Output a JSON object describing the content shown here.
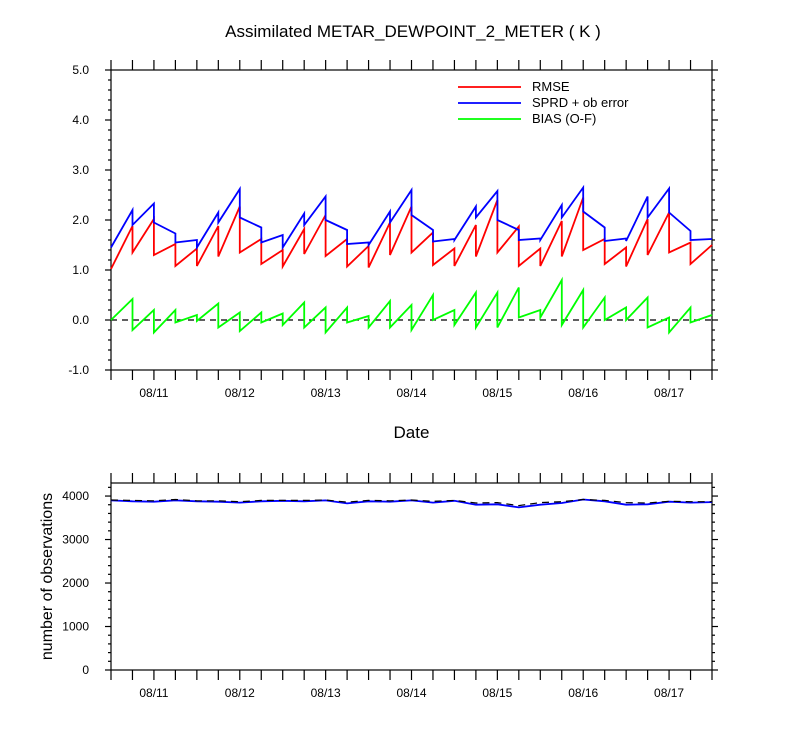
{
  "title": "Assimilated METAR_DEWPOINT_2_METER ( K )",
  "chart_data": [
    {
      "type": "line",
      "title": "Assimilated METAR_DEWPOINT_2_METER ( K )",
      "xlabel": "Date",
      "ylabel": "",
      "xlim": [
        0,
        14
      ],
      "ylim": [
        -1.0,
        5.0
      ],
      "yticks": [
        -1.0,
        0.0,
        1.0,
        2.0,
        3.0,
        4.0,
        5.0
      ],
      "ytick_labels": [
        "-1.0",
        "0.0",
        "1.0",
        "2.0",
        "3.0",
        "4.0",
        "5.0"
      ],
      "xtick_labels": [
        {
          "x": 1,
          "label": "08/11"
        },
        {
          "x": 3,
          "label": "08/12"
        },
        {
          "x": 5,
          "label": "08/13"
        },
        {
          "x": 7,
          "label": "08/14"
        },
        {
          "x": 9,
          "label": "08/15"
        },
        {
          "x": 11,
          "label": "08/16"
        },
        {
          "x": 13,
          "label": "08/17"
        }
      ],
      "legend_position": "top-right",
      "zero_line": "dashed",
      "series": [
        {
          "name": "RMSE",
          "color": "#ff0000",
          "points": [
            [
              0,
              1.02
            ],
            [
              0.5,
              1.88
            ],
            [
              0.5,
              1.35
            ],
            [
              1,
              2.02
            ],
            [
              1,
              1.3
            ],
            [
              1.5,
              1.52
            ],
            [
              1.5,
              1.08
            ],
            [
              2,
              1.43
            ],
            [
              2,
              1.08
            ],
            [
              2.5,
              1.88
            ],
            [
              2.5,
              1.27
            ],
            [
              3,
              2.27
            ],
            [
              3,
              1.35
            ],
            [
              3.5,
              1.62
            ],
            [
              3.5,
              1.12
            ],
            [
              4,
              1.4
            ],
            [
              4,
              1.07
            ],
            [
              4.5,
              1.82
            ],
            [
              4.5,
              1.32
            ],
            [
              5,
              2.1
            ],
            [
              5,
              1.28
            ],
            [
              5.5,
              1.62
            ],
            [
              5.5,
              1.07
            ],
            [
              6,
              1.48
            ],
            [
              6,
              1.05
            ],
            [
              6.5,
              1.95
            ],
            [
              6.5,
              1.3
            ],
            [
              7,
              2.27
            ],
            [
              7,
              1.35
            ],
            [
              7.5,
              1.75
            ],
            [
              7.5,
              1.1
            ],
            [
              8,
              1.43
            ],
            [
              8,
              1.08
            ],
            [
              8.5,
              1.9
            ],
            [
              8.5,
              1.27
            ],
            [
              9,
              2.4
            ],
            [
              9,
              1.35
            ],
            [
              9.5,
              1.87
            ],
            [
              9.5,
              1.08
            ],
            [
              10,
              1.43
            ],
            [
              10,
              1.08
            ],
            [
              10.5,
              1.98
            ],
            [
              10.5,
              1.27
            ],
            [
              11,
              2.45
            ],
            [
              11,
              1.4
            ],
            [
              11.5,
              1.62
            ],
            [
              11.5,
              1.12
            ],
            [
              12,
              1.45
            ],
            [
              12,
              1.07
            ],
            [
              12.5,
              2.02
            ],
            [
              12.5,
              1.3
            ],
            [
              13,
              2.15
            ],
            [
              13,
              1.35
            ],
            [
              13.5,
              1.55
            ],
            [
              13.5,
              1.12
            ],
            [
              14,
              1.5
            ]
          ]
        },
        {
          "name": "SPRD + ob error",
          "color": "#0000ff",
          "points": [
            [
              0,
              1.45
            ],
            [
              0.5,
              2.2
            ],
            [
              0.5,
              1.9
            ],
            [
              1,
              2.33
            ],
            [
              1,
              1.95
            ],
            [
              1.5,
              1.73
            ],
            [
              1.5,
              1.55
            ],
            [
              2,
              1.6
            ],
            [
              2,
              1.45
            ],
            [
              2.5,
              2.15
            ],
            [
              2.5,
              1.95
            ],
            [
              3,
              2.62
            ],
            [
              3,
              2.05
            ],
            [
              3.5,
              1.85
            ],
            [
              3.5,
              1.55
            ],
            [
              4,
              1.7
            ],
            [
              4,
              1.45
            ],
            [
              4.5,
              2.13
            ],
            [
              4.5,
              1.9
            ],
            [
              5,
              2.47
            ],
            [
              5,
              2.0
            ],
            [
              5.5,
              1.8
            ],
            [
              5.5,
              1.52
            ],
            [
              6,
              1.55
            ],
            [
              6,
              1.5
            ],
            [
              6.5,
              2.17
            ],
            [
              6.5,
              1.95
            ],
            [
              7,
              2.6
            ],
            [
              7,
              2.1
            ],
            [
              7.5,
              1.8
            ],
            [
              7.5,
              1.57
            ],
            [
              8,
              1.62
            ],
            [
              8,
              1.6
            ],
            [
              8.5,
              2.27
            ],
            [
              8.5,
              2.05
            ],
            [
              9,
              2.58
            ],
            [
              9,
              2.0
            ],
            [
              9.5,
              1.8
            ],
            [
              9.5,
              1.6
            ],
            [
              10,
              1.63
            ],
            [
              10,
              1.6
            ],
            [
              10.5,
              2.3
            ],
            [
              10.5,
              2.05
            ],
            [
              11,
              2.65
            ],
            [
              11,
              2.17
            ],
            [
              11.5,
              1.85
            ],
            [
              11.5,
              1.58
            ],
            [
              12,
              1.63
            ],
            [
              12,
              1.58
            ],
            [
              12.5,
              2.47
            ],
            [
              12.5,
              2.05
            ],
            [
              13,
              2.63
            ],
            [
              13,
              2.15
            ],
            [
              13.5,
              1.78
            ],
            [
              13.5,
              1.6
            ],
            [
              14,
              1.62
            ]
          ]
        },
        {
          "name": "BIAS (O-F)",
          "color": "#00ff00",
          "points": [
            [
              0,
              0.0
            ],
            [
              0.5,
              0.42
            ],
            [
              0.5,
              -0.2
            ],
            [
              1,
              0.2
            ],
            [
              1,
              -0.25
            ],
            [
              1.5,
              0.2
            ],
            [
              1.5,
              -0.05
            ],
            [
              2,
              0.1
            ],
            [
              2,
              -0.02
            ],
            [
              2.5,
              0.33
            ],
            [
              2.5,
              -0.15
            ],
            [
              3,
              0.15
            ],
            [
              3,
              -0.22
            ],
            [
              3.5,
              0.15
            ],
            [
              3.5,
              -0.05
            ],
            [
              4,
              0.13
            ],
            [
              4,
              -0.1
            ],
            [
              4.5,
              0.35
            ],
            [
              4.5,
              -0.15
            ],
            [
              5,
              0.25
            ],
            [
              5,
              -0.25
            ],
            [
              5.5,
              0.25
            ],
            [
              5.5,
              -0.05
            ],
            [
              6,
              0.08
            ],
            [
              6,
              -0.15
            ],
            [
              6.5,
              0.38
            ],
            [
              6.5,
              -0.15
            ],
            [
              7,
              0.3
            ],
            [
              7,
              -0.2
            ],
            [
              7.5,
              0.5
            ],
            [
              7.5,
              0.0
            ],
            [
              8,
              0.2
            ],
            [
              8,
              -0.1
            ],
            [
              8.5,
              0.55
            ],
            [
              8.5,
              -0.15
            ],
            [
              9,
              0.55
            ],
            [
              9,
              -0.15
            ],
            [
              9.5,
              0.65
            ],
            [
              9.5,
              0.05
            ],
            [
              10,
              0.2
            ],
            [
              10,
              0.05
            ],
            [
              10.5,
              0.8
            ],
            [
              10.5,
              -0.1
            ],
            [
              11,
              0.6
            ],
            [
              11,
              -0.15
            ],
            [
              11.5,
              0.45
            ],
            [
              11.5,
              0.0
            ],
            [
              12,
              0.25
            ],
            [
              12,
              0.0
            ],
            [
              12.5,
              0.45
            ],
            [
              12.5,
              -0.15
            ],
            [
              13,
              0.05
            ],
            [
              13,
              -0.25
            ],
            [
              13.5,
              0.25
            ],
            [
              13.5,
              -0.05
            ],
            [
              14,
              0.1
            ]
          ]
        }
      ]
    },
    {
      "type": "line",
      "title": "",
      "xlabel": "",
      "ylabel": "number of observations",
      "xlim": [
        0,
        14
      ],
      "ylim": [
        0,
        4300
      ],
      "yticks": [
        0,
        1000,
        2000,
        3000,
        4000
      ],
      "ytick_labels": [
        "0",
        "1000",
        "2000",
        "3000",
        "4000"
      ],
      "xtick_labels": [
        {
          "x": 1,
          "label": "08/11"
        },
        {
          "x": 3,
          "label": "08/12"
        },
        {
          "x": 5,
          "label": "08/13"
        },
        {
          "x": 7,
          "label": "08/14"
        },
        {
          "x": 9,
          "label": "08/15"
        },
        {
          "x": 11,
          "label": "08/16"
        },
        {
          "x": 13,
          "label": "08/17"
        }
      ],
      "series": [
        {
          "name": "",
          "color": "#0000ff",
          "style": "solid",
          "points": [
            [
              0,
              3900
            ],
            [
              0.5,
              3880
            ],
            [
              1,
              3870
            ],
            [
              1.5,
              3900
            ],
            [
              2,
              3880
            ],
            [
              2.5,
              3870
            ],
            [
              3,
              3850
            ],
            [
              3.5,
              3880
            ],
            [
              4,
              3890
            ],
            [
              4.5,
              3880
            ],
            [
              5,
              3900
            ],
            [
              5.5,
              3830
            ],
            [
              6,
              3880
            ],
            [
              6.5,
              3870
            ],
            [
              7,
              3900
            ],
            [
              7.5,
              3850
            ],
            [
              8,
              3890
            ],
            [
              8.5,
              3800
            ],
            [
              9,
              3810
            ],
            [
              9.5,
              3740
            ],
            [
              10,
              3800
            ],
            [
              10.5,
              3840
            ],
            [
              11,
              3920
            ],
            [
              11.5,
              3880
            ],
            [
              12,
              3800
            ],
            [
              12.5,
              3810
            ],
            [
              13,
              3870
            ],
            [
              13.5,
              3850
            ],
            [
              14,
              3860
            ]
          ]
        },
        {
          "name": "",
          "color": "#000000",
          "style": "dashed",
          "points": [
            [
              0,
              3910
            ],
            [
              0.5,
              3900
            ],
            [
              1,
              3890
            ],
            [
              1.5,
              3920
            ],
            [
              2,
              3890
            ],
            [
              2.5,
              3890
            ],
            [
              3,
              3870
            ],
            [
              3.5,
              3900
            ],
            [
              4,
              3900
            ],
            [
              4.5,
              3900
            ],
            [
              5,
              3910
            ],
            [
              5.5,
              3860
            ],
            [
              6,
              3900
            ],
            [
              6.5,
              3890
            ],
            [
              7,
              3910
            ],
            [
              7.5,
              3880
            ],
            [
              8,
              3900
            ],
            [
              8.5,
              3840
            ],
            [
              9,
              3850
            ],
            [
              9.5,
              3780
            ],
            [
              10,
              3850
            ],
            [
              10.5,
              3870
            ],
            [
              11,
              3920
            ],
            [
              11.5,
              3900
            ],
            [
              12,
              3850
            ],
            [
              12.5,
              3840
            ],
            [
              13,
              3880
            ],
            [
              13.5,
              3870
            ],
            [
              14,
              3870
            ]
          ]
        }
      ]
    }
  ]
}
